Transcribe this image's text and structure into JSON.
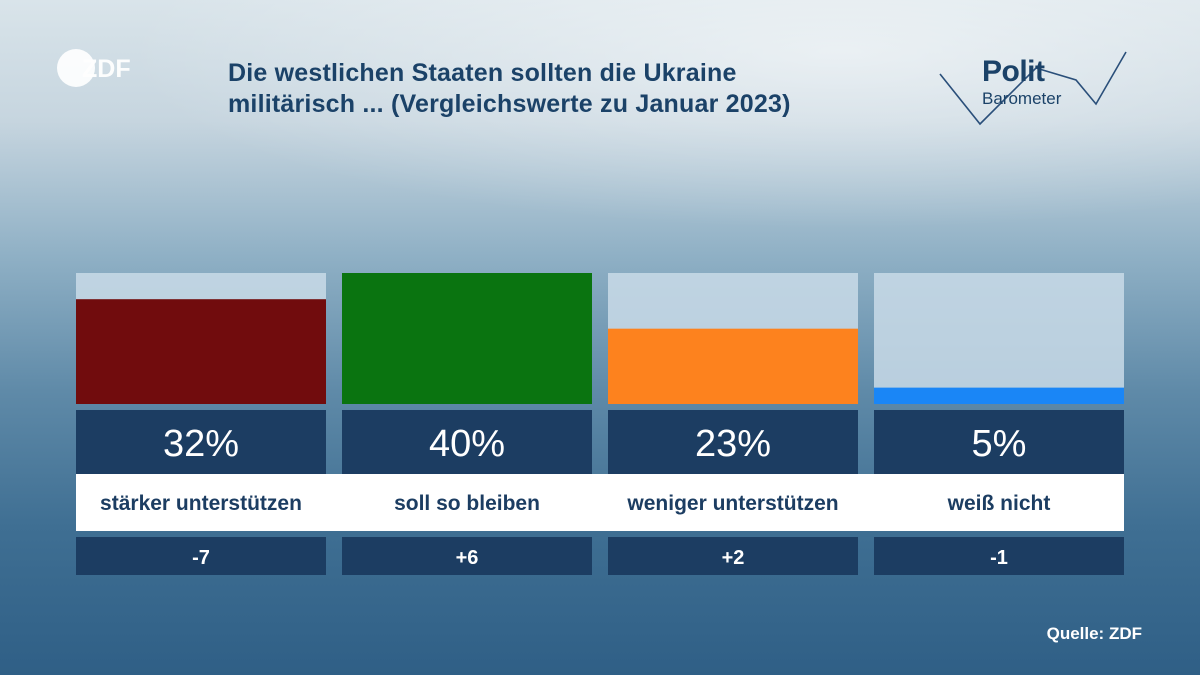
{
  "header": {
    "title_line1": "Die westlichen Staaten sollten die Ukraine",
    "title_line2": "militärisch ... (Vergleichswerte zu Januar 2023)",
    "brand_left": "ZDF",
    "brand_right_line1": "Polit",
    "brand_right_line2": "Barometer"
  },
  "footer": {
    "source": "Quelle: ZDF"
  },
  "chart_data": {
    "type": "bar",
    "title": "Die westlichen Staaten sollten die Ukraine militärisch ... (Vergleichswerte zu Januar 2023)",
    "categories": [
      "stärker unterstützen",
      "soll so bleiben",
      "weniger unterstützen",
      "weiß nicht"
    ],
    "values": [
      32,
      40,
      23,
      5
    ],
    "value_labels": [
      "32%",
      "40%",
      "23%",
      "5%"
    ],
    "changes": [
      "-7",
      "+6",
      "+2",
      "-1"
    ],
    "colors": [
      "#710c0d",
      "#0a7410",
      "#fd821e",
      "#1a86f6"
    ],
    "ylim": [
      0,
      40
    ],
    "xlabel": "",
    "ylabel": ""
  }
}
